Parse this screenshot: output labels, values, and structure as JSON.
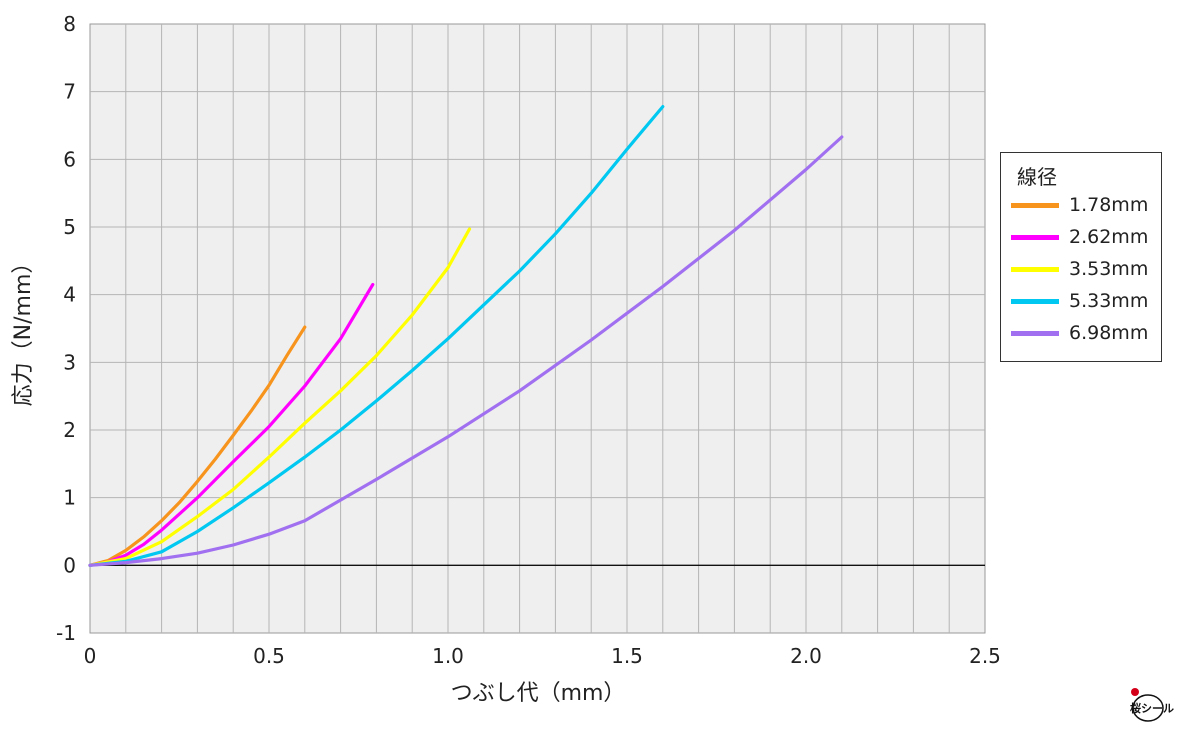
{
  "chart_data": {
    "type": "line",
    "xlabel": "つぶし代（mm）",
    "ylabel": "応力（N/mm）",
    "xlim": [
      0,
      2.5
    ],
    "ylim": [
      -1,
      8
    ],
    "x_ticks": [
      "0",
      "0.5",
      "1.0",
      "1.5",
      "2.0",
      "2.5"
    ],
    "y_ticks": [
      "-1",
      "0",
      "1",
      "2",
      "3",
      "4",
      "5",
      "6",
      "7",
      "8"
    ],
    "grid": true,
    "legend": {
      "title": "線径",
      "position": "right"
    },
    "series": [
      {
        "name": "1.78mm",
        "color": "#f7941d",
        "x": [
          0,
          0.05,
          0.1,
          0.15,
          0.2,
          0.25,
          0.3,
          0.35,
          0.4,
          0.45,
          0.5,
          0.55,
          0.6
        ],
        "y": [
          0,
          0.07,
          0.22,
          0.42,
          0.66,
          0.93,
          1.24,
          1.57,
          1.92,
          2.28,
          2.66,
          3.1,
          3.52
        ]
      },
      {
        "name": "2.62mm",
        "color": "#ff00ff",
        "x": [
          0,
          0.05,
          0.1,
          0.15,
          0.2,
          0.3,
          0.4,
          0.5,
          0.6,
          0.7,
          0.79
        ],
        "y": [
          0,
          0.05,
          0.15,
          0.31,
          0.52,
          1.0,
          1.53,
          2.05,
          2.65,
          3.35,
          4.15
        ]
      },
      {
        "name": "3.53mm",
        "color": "#ffff00",
        "x": [
          0,
          0.1,
          0.2,
          0.3,
          0.4,
          0.5,
          0.6,
          0.7,
          0.8,
          0.9,
          1.0,
          1.06
        ],
        "y": [
          0,
          0.1,
          0.35,
          0.72,
          1.12,
          1.6,
          2.1,
          2.58,
          3.1,
          3.7,
          4.4,
          4.97
        ]
      },
      {
        "name": "5.33mm",
        "color": "#00c8f0",
        "x": [
          0,
          0.1,
          0.2,
          0.3,
          0.4,
          0.5,
          0.6,
          0.7,
          0.8,
          0.9,
          1.0,
          1.1,
          1.2,
          1.3,
          1.4,
          1.5,
          1.6
        ],
        "y": [
          0,
          0.06,
          0.2,
          0.5,
          0.85,
          1.22,
          1.6,
          2.0,
          2.43,
          2.88,
          3.35,
          3.85,
          4.35,
          4.9,
          5.5,
          6.15,
          6.78
        ]
      },
      {
        "name": "6.98mm",
        "color": "#a070f0",
        "x": [
          0,
          0.1,
          0.2,
          0.3,
          0.4,
          0.5,
          0.6,
          0.8,
          1.0,
          1.2,
          1.4,
          1.6,
          1.8,
          2.0,
          2.1
        ],
        "y": [
          0,
          0.04,
          0.1,
          0.18,
          0.3,
          0.46,
          0.66,
          1.27,
          1.9,
          2.58,
          3.33,
          4.12,
          4.95,
          5.85,
          6.33
        ]
      }
    ]
  },
  "logo": {
    "text": "桜シール",
    "color": "#d4001a"
  }
}
